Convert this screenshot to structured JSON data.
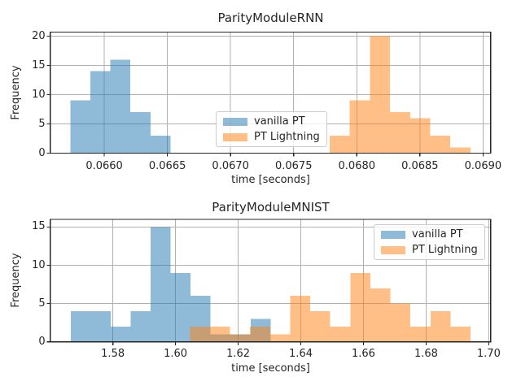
{
  "figure": {
    "background": "#ffffff"
  },
  "palette": {
    "vanilla_pt": "#1f77b4",
    "pt_lightning": "#ff7f0e",
    "bar_alpha": 0.5,
    "grid": "#b0b0b0",
    "axis": "#262626",
    "text": "#262626",
    "legend_border": "#cccccc"
  },
  "chart_data": [
    {
      "type": "bar",
      "subtype": "histogram",
      "title": "ParityModuleRNN",
      "xlabel": "time [seconds]",
      "ylabel": "Frequency",
      "xlim": [
        0.065572,
        0.06906
      ],
      "ylim": [
        0,
        20.7
      ],
      "grid": true,
      "xticks": {
        "values": [
          0.066,
          0.0665,
          0.067,
          0.0675,
          0.068,
          0.0685,
          0.069
        ],
        "labels": [
          "0.0660",
          "0.0665",
          "0.0670",
          "0.0675",
          "0.0680",
          "0.0685",
          "0.0690"
        ]
      },
      "yticks": {
        "values": [
          0,
          5,
          10,
          15,
          20
        ],
        "labels": [
          "0",
          "5",
          "10",
          "15",
          "20"
        ]
      },
      "legend": {
        "position": "center",
        "entries": [
          {
            "label": "vanilla PT",
            "color": "#1f77b4"
          },
          {
            "label": "PT Lightning",
            "color": "#ff7f0e"
          }
        ]
      },
      "series": [
        {
          "name": "vanilla PT",
          "color": "#1f77b4",
          "alpha": 0.5,
          "bin_start": 0.065731,
          "bin_width": 0.0001586,
          "counts": [
            9,
            14,
            16,
            7,
            3
          ]
        },
        {
          "name": "PT Lightning",
          "color": "#ff7f0e",
          "alpha": 0.5,
          "bin_start": 0.067785,
          "bin_width": 0.0001593,
          "counts": [
            3,
            9,
            20,
            7,
            6,
            3,
            1
          ]
        }
      ]
    },
    {
      "type": "bar",
      "subtype": "histogram",
      "title": "ParityModuleMNIST",
      "xlabel": "time [seconds]",
      "ylabel": "Frequency",
      "xlim": [
        1.56,
        1.7006
      ],
      "ylim": [
        0,
        16
      ],
      "grid": true,
      "xticks": {
        "values": [
          1.58,
          1.6,
          1.62,
          1.64,
          1.66,
          1.68,
          1.7
        ],
        "labels": [
          "1.58",
          "1.60",
          "1.62",
          "1.64",
          "1.66",
          "1.68",
          "1.70"
        ]
      },
      "yticks": {
        "values": [
          0,
          5,
          10,
          15
        ],
        "labels": [
          "0",
          "5",
          "10",
          "15"
        ]
      },
      "legend": {
        "position": "upper right",
        "entries": [
          {
            "label": "vanilla PT",
            "color": "#1f77b4"
          },
          {
            "label": "PT Lightning",
            "color": "#ff7f0e"
          }
        ]
      },
      "series": [
        {
          "name": "vanilla PT",
          "color": "#1f77b4",
          "alpha": 0.5,
          "bin_start": 1.56655,
          "bin_width": 0.00638,
          "counts": [
            4,
            4,
            2,
            4,
            15,
            9,
            6,
            1,
            1,
            3
          ]
        },
        {
          "name": "PT Lightning",
          "color": "#ff7f0e",
          "alpha": 0.5,
          "bin_start": 1.6046,
          "bin_width": 0.0064,
          "counts": [
            2,
            2,
            1,
            2,
            1,
            6,
            4,
            2,
            9,
            7,
            5,
            2,
            4,
            2
          ]
        }
      ]
    }
  ]
}
